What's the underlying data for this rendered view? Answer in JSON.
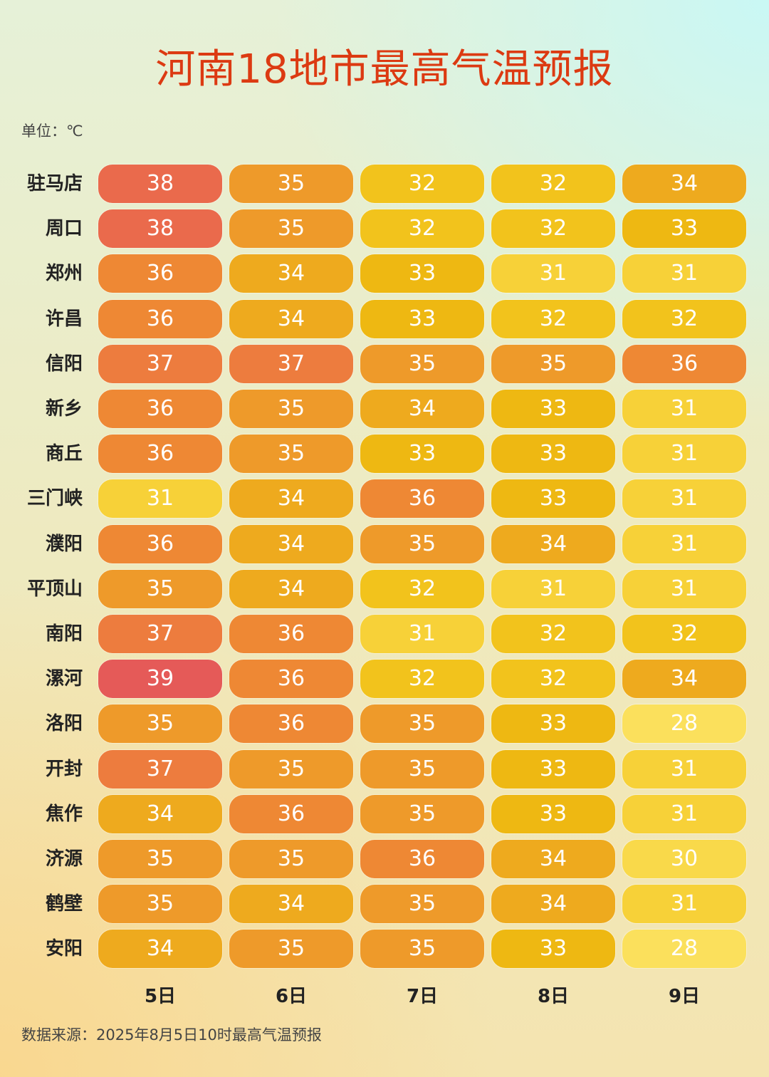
{
  "chart_data": {
    "type": "heatmap",
    "title": "河南18地市最高气温预报",
    "unit_label": "单位：℃",
    "source": "数据来源：2025年8月5日10时最高气温预报",
    "columns": [
      "5日",
      "6日",
      "7日",
      "8日",
      "9日"
    ],
    "rows": [
      "驻马店",
      "周口",
      "郑州",
      "许昌",
      "信阳",
      "新乡",
      "商丘",
      "三门峡",
      "濮阳",
      "平顶山",
      "南阳",
      "漯河",
      "洛阳",
      "开封",
      "焦作",
      "济源",
      "鹤壁",
      "安阳"
    ],
    "values": [
      [
        38,
        35,
        32,
        32,
        34
      ],
      [
        38,
        35,
        32,
        32,
        33
      ],
      [
        36,
        34,
        33,
        31,
        31
      ],
      [
        36,
        34,
        33,
        32,
        32
      ],
      [
        37,
        37,
        35,
        35,
        36
      ],
      [
        36,
        35,
        34,
        33,
        31
      ],
      [
        36,
        35,
        33,
        33,
        31
      ],
      [
        31,
        34,
        36,
        33,
        31
      ],
      [
        36,
        34,
        35,
        34,
        31
      ],
      [
        35,
        34,
        32,
        31,
        31
      ],
      [
        37,
        36,
        31,
        32,
        32
      ],
      [
        39,
        36,
        32,
        32,
        34
      ],
      [
        35,
        36,
        35,
        33,
        28
      ],
      [
        37,
        35,
        35,
        33,
        31
      ],
      [
        34,
        36,
        35,
        33,
        31
      ],
      [
        35,
        35,
        36,
        34,
        30
      ],
      [
        35,
        34,
        35,
        34,
        31
      ],
      [
        34,
        35,
        35,
        33,
        28
      ]
    ],
    "color_scale": {
      "39": "#e55a58",
      "38": "#ea6a4c",
      "37": "#ed7c3e",
      "36": "#ee8834",
      "35": "#ee9a2a",
      "34": "#eeaa1e",
      "33": "#eeb812",
      "32": "#f2c31c",
      "31": "#f7d138",
      "30": "#f9d94a",
      "28": "#fbe05c"
    }
  }
}
